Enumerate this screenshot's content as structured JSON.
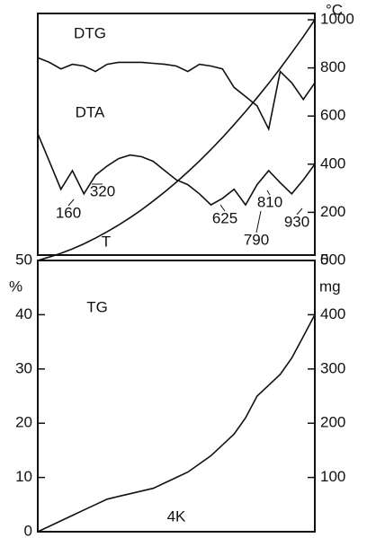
{
  "chart_data": [
    {
      "type": "line",
      "series": [
        {
          "name": "DTG",
          "color": "#111111",
          "values": [
            842,
            823,
            796,
            815,
            808,
            785,
            815,
            823,
            823,
            823,
            819,
            815,
            808,
            785,
            815,
            808,
            796,
            719,
            681,
            642,
            546,
            785,
            738,
            669,
            738
          ]
        },
        {
          "name": "DTA",
          "color": "#111111",
          "values": [
            527,
            412,
            296,
            373,
            277,
            354,
            392,
            423,
            438,
            431,
            412,
            373,
            335,
            315,
            277,
            231,
            258,
            296,
            231,
            315,
            373,
            323,
            277,
            335,
            400
          ]
        },
        {
          "name": "T",
          "color": "#111111",
          "values": [
            0,
            14,
            30,
            48,
            69,
            93,
            119,
            147,
            178,
            211,
            247,
            285,
            325,
            368,
            413,
            461,
            511,
            564,
            619,
            676,
            736,
            798,
            863,
            930,
            1000
          ]
        }
      ],
      "annotations": [
        160,
        320,
        625,
        790,
        810,
        930
      ],
      "y_label": "°C",
      "ylim": [
        0,
        1000
      ],
      "yticks": [
        0,
        200,
        400,
        600,
        800,
        1000
      ]
    },
    {
      "type": "line",
      "title": "4K",
      "series": [
        {
          "name": "TG",
          "color": "#111111",
          "values": [
            0,
            1,
            2,
            3,
            4,
            5,
            6,
            6.5,
            7,
            7.5,
            8,
            9,
            10,
            11,
            12.5,
            14,
            16,
            18,
            21,
            25,
            27,
            29,
            32,
            36,
            40
          ]
        }
      ],
      "y_label": "%",
      "y2_label": "mg",
      "ylim": [
        0,
        50
      ],
      "yticks": [
        0,
        10,
        20,
        30,
        40,
        50
      ],
      "y2lim": [
        0,
        500
      ],
      "y2ticks": [
        100,
        200,
        300,
        400,
        500
      ]
    }
  ]
}
